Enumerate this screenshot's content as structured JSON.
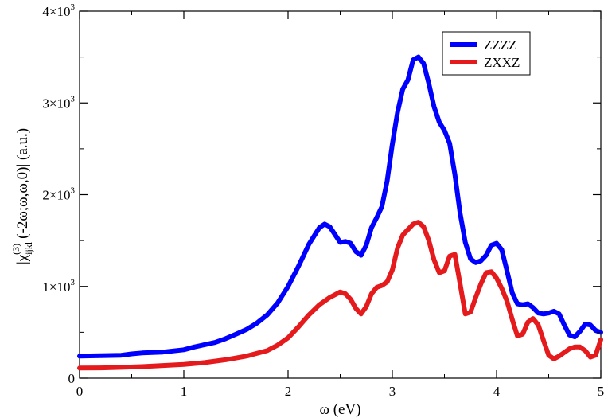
{
  "chart_data": {
    "type": "line",
    "title": "",
    "xlabel": "ω (eV)",
    "ylabel": "|χ^(3)_ijkl (-2ω;ω,ω,0)| (a.u.)",
    "xlim": [
      0,
      5
    ],
    "ylim": [
      0,
      4000
    ],
    "x_ticks": [
      "0",
      "1",
      "2",
      "3",
      "4",
      "5"
    ],
    "y_ticks": [
      {
        "value": 0,
        "base": "0",
        "exp": ""
      },
      {
        "value": 1000,
        "base": "1×10",
        "exp": "3"
      },
      {
        "value": 2000,
        "base": "2×10",
        "exp": "3"
      },
      {
        "value": 3000,
        "base": "3×10",
        "exp": "3"
      },
      {
        "value": 4000,
        "base": "4×10",
        "exp": "3"
      }
    ],
    "grid": false,
    "legend_position": "top-right",
    "series": [
      {
        "name": "ZZZZ",
        "color": "#0000ff",
        "x": [
          0,
          0.2,
          0.4,
          0.5,
          0.6,
          0.8,
          1.0,
          1.1,
          1.2,
          1.3,
          1.4,
          1.5,
          1.6,
          1.7,
          1.8,
          1.9,
          2.0,
          2.1,
          2.2,
          2.3,
          2.35,
          2.4,
          2.5,
          2.55,
          2.6,
          2.65,
          2.7,
          2.75,
          2.8,
          2.85,
          2.9,
          2.95,
          3.0,
          3.05,
          3.1,
          3.15,
          3.2,
          3.25,
          3.3,
          3.35,
          3.4,
          3.45,
          3.5,
          3.55,
          3.6,
          3.65,
          3.7,
          3.75,
          3.8,
          3.85,
          3.9,
          3.95,
          4.0,
          4.05,
          4.1,
          4.15,
          4.2,
          4.25,
          4.3,
          4.35,
          4.4,
          4.45,
          4.5,
          4.55,
          4.6,
          4.65,
          4.7,
          4.75,
          4.8,
          4.85,
          4.9,
          4.95,
          5.0
        ],
        "y": [
          240,
          245,
          250,
          265,
          275,
          285,
          310,
          340,
          365,
          390,
          430,
          480,
          530,
          600,
          690,
          820,
          1000,
          1220,
          1460,
          1640,
          1680,
          1650,
          1480,
          1490,
          1470,
          1380,
          1340,
          1450,
          1640,
          1750,
          1870,
          2150,
          2550,
          2900,
          3150,
          3250,
          3470,
          3500,
          3430,
          3210,
          2960,
          2790,
          2700,
          2560,
          2220,
          1800,
          1480,
          1300,
          1260,
          1280,
          1340,
          1450,
          1470,
          1400,
          1170,
          930,
          810,
          800,
          810,
          770,
          710,
          700,
          710,
          730,
          700,
          580,
          470,
          450,
          510,
          590,
          580,
          520,
          500
        ]
      },
      {
        "name": "ZXXZ",
        "color": "#e41a1c",
        "x": [
          0,
          0.2,
          0.4,
          0.6,
          0.8,
          1.0,
          1.2,
          1.4,
          1.6,
          1.8,
          1.9,
          2.0,
          2.1,
          2.2,
          2.3,
          2.4,
          2.5,
          2.55,
          2.6,
          2.65,
          2.7,
          2.75,
          2.8,
          2.85,
          2.9,
          2.95,
          3.0,
          3.05,
          3.1,
          3.15,
          3.2,
          3.25,
          3.3,
          3.35,
          3.4,
          3.45,
          3.5,
          3.55,
          3.6,
          3.65,
          3.7,
          3.75,
          3.8,
          3.85,
          3.9,
          3.95,
          4.0,
          4.05,
          4.1,
          4.15,
          4.2,
          4.25,
          4.3,
          4.35,
          4.4,
          4.45,
          4.5,
          4.55,
          4.6,
          4.65,
          4.7,
          4.75,
          4.8,
          4.85,
          4.9,
          4.95,
          5.0
        ],
        "y": [
          110,
          112,
          118,
          126,
          138,
          150,
          170,
          200,
          240,
          300,
          360,
          440,
          560,
          690,
          800,
          880,
          940,
          920,
          860,
          760,
          700,
          780,
          920,
          990,
          1010,
          1050,
          1180,
          1420,
          1560,
          1620,
          1680,
          1700,
          1650,
          1500,
          1290,
          1150,
          1170,
          1330,
          1350,
          1030,
          700,
          720,
          880,
          1030,
          1150,
          1160,
          1090,
          980,
          840,
          640,
          460,
          480,
          610,
          650,
          580,
          410,
          250,
          210,
          240,
          280,
          320,
          340,
          340,
          300,
          230,
          250,
          420
        ]
      }
    ]
  }
}
